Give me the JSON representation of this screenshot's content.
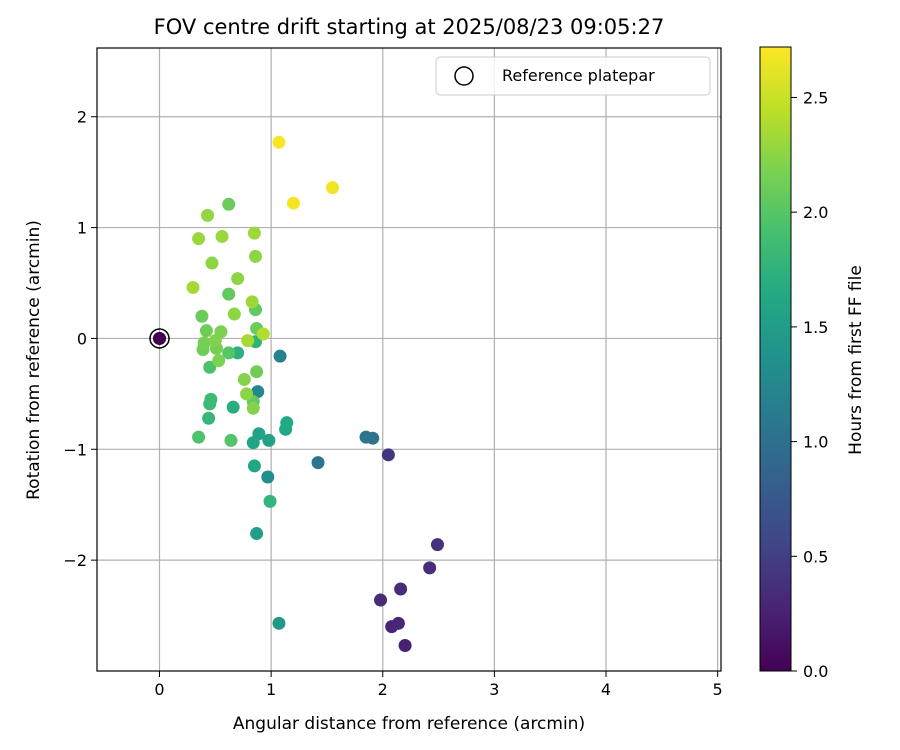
{
  "chart_data": {
    "type": "scatter",
    "title": "FOV centre drift starting at 2025/08/23 09:05:27",
    "xlabel": "Angular distance from reference (arcmin)",
    "ylabel": "Rotation from reference (arcmin)",
    "xlim": [
      -0.56,
      5.03
    ],
    "ylim": [
      -3.0,
      2.62
    ],
    "xticks": [
      0,
      1,
      2,
      3,
      4,
      5
    ],
    "yticks": [
      -2,
      -1,
      0,
      1,
      2
    ],
    "xtick_labels": [
      "0",
      "1",
      "2",
      "3",
      "4",
      "5"
    ],
    "ytick_labels": [
      "−2",
      "−1",
      "0",
      "1",
      "2"
    ],
    "grid": true,
    "legend": {
      "entries": [
        "Reference platepar"
      ],
      "location": "upper right"
    },
    "colorbar": {
      "label": "Hours from first FF file",
      "range": [
        0.0,
        2.72
      ],
      "ticks": [
        0.0,
        0.5,
        1.0,
        1.5,
        2.0,
        2.5
      ],
      "tick_labels": [
        "0.0",
        "0.5",
        "1.0",
        "1.5",
        "2.0",
        "2.5"
      ],
      "colormap": "viridis"
    },
    "reference_point": {
      "x": 0,
      "y": 0,
      "hours": 0.0
    },
    "points": [
      {
        "x": 0.0,
        "y": 0.0,
        "hours": 0.0
      },
      {
        "x": 2.2,
        "y": -2.77,
        "hours": 0.25
      },
      {
        "x": 2.08,
        "y": -2.6,
        "hours": 0.28
      },
      {
        "x": 2.14,
        "y": -2.57,
        "hours": 0.3
      },
      {
        "x": 1.98,
        "y": -2.36,
        "hours": 0.32
      },
      {
        "x": 2.16,
        "y": -2.26,
        "hours": 0.34
      },
      {
        "x": 2.42,
        "y": -2.07,
        "hours": 0.36
      },
      {
        "x": 2.49,
        "y": -1.86,
        "hours": 0.38
      },
      {
        "x": 2.05,
        "y": -1.05,
        "hours": 0.42
      },
      {
        "x": 1.91,
        "y": -0.9,
        "hours": 1.02
      },
      {
        "x": 1.85,
        "y": -0.89,
        "hours": 1.05
      },
      {
        "x": 1.42,
        "y": -1.12,
        "hours": 1.07
      },
      {
        "x": 1.08,
        "y": -0.16,
        "hours": 1.18
      },
      {
        "x": 0.88,
        "y": -0.48,
        "hours": 1.25
      },
      {
        "x": 0.97,
        "y": -1.25,
        "hours": 1.35
      },
      {
        "x": 1.07,
        "y": -2.57,
        "hours": 1.45
      },
      {
        "x": 0.87,
        "y": -1.76,
        "hours": 1.5
      },
      {
        "x": 0.89,
        "y": -0.86,
        "hours": 1.55
      },
      {
        "x": 0.84,
        "y": -0.94,
        "hours": 1.58
      },
      {
        "x": 0.98,
        "y": -0.92,
        "hours": 1.55
      },
      {
        "x": 0.85,
        "y": -1.15,
        "hours": 1.62
      },
      {
        "x": 1.13,
        "y": -0.82,
        "hours": 1.62
      },
      {
        "x": 1.14,
        "y": -0.76,
        "hours": 1.65
      },
      {
        "x": 0.66,
        "y": -0.62,
        "hours": 1.68
      },
      {
        "x": 0.7,
        "y": -0.13,
        "hours": 1.72
      },
      {
        "x": 0.86,
        "y": -0.03,
        "hours": 1.75
      },
      {
        "x": 0.99,
        "y": -1.47,
        "hours": 1.78
      },
      {
        "x": 0.44,
        "y": -0.72,
        "hours": 1.8
      },
      {
        "x": 0.45,
        "y": -0.59,
        "hours": 1.85
      },
      {
        "x": 0.46,
        "y": -0.55,
        "hours": 1.85
      },
      {
        "x": 0.45,
        "y": -0.26,
        "hours": 1.95
      },
      {
        "x": 0.35,
        "y": -0.89,
        "hours": 1.95
      },
      {
        "x": 0.64,
        "y": -0.92,
        "hours": 1.98
      },
      {
        "x": 0.62,
        "y": -0.13,
        "hours": 2.0
      },
      {
        "x": 0.62,
        "y": 0.4,
        "hours": 2.05
      },
      {
        "x": 0.86,
        "y": 0.26,
        "hours": 2.05
      },
      {
        "x": 0.84,
        "y": -0.57,
        "hours": 2.05
      },
      {
        "x": 0.87,
        "y": 0.09,
        "hours": 2.1
      },
      {
        "x": 0.87,
        "y": -0.3,
        "hours": 2.12
      },
      {
        "x": 0.62,
        "y": 1.21,
        "hours": 2.1
      },
      {
        "x": 0.38,
        "y": 0.2,
        "hours": 2.1
      },
      {
        "x": 0.39,
        "y": -0.1,
        "hours": 2.12
      },
      {
        "x": 0.4,
        "y": -0.04,
        "hours": 2.15
      },
      {
        "x": 0.42,
        "y": 0.07,
        "hours": 2.12
      },
      {
        "x": 0.51,
        "y": -0.09,
        "hours": 2.15
      },
      {
        "x": 0.55,
        "y": 0.06,
        "hours": 2.18
      },
      {
        "x": 0.53,
        "y": -0.2,
        "hours": 2.18
      },
      {
        "x": 0.5,
        "y": -0.02,
        "hours": 2.2
      },
      {
        "x": 0.84,
        "y": -0.63,
        "hours": 2.22
      },
      {
        "x": 0.76,
        "y": -0.37,
        "hours": 2.22
      },
      {
        "x": 0.78,
        "y": -0.5,
        "hours": 2.25
      },
      {
        "x": 0.86,
        "y": 0.74,
        "hours": 2.25
      },
      {
        "x": 0.67,
        "y": 0.22,
        "hours": 2.25
      },
      {
        "x": 0.7,
        "y": 0.54,
        "hours": 2.25
      },
      {
        "x": 0.47,
        "y": 0.68,
        "hours": 2.25
      },
      {
        "x": 0.43,
        "y": 1.11,
        "hours": 2.28
      },
      {
        "x": 0.35,
        "y": 0.9,
        "hours": 2.3
      },
      {
        "x": 0.56,
        "y": 0.92,
        "hours": 2.3
      },
      {
        "x": 0.85,
        "y": 0.95,
        "hours": 2.32
      },
      {
        "x": 0.83,
        "y": 0.33,
        "hours": 2.32
      },
      {
        "x": 0.79,
        "y": -0.02,
        "hours": 2.35
      },
      {
        "x": 0.3,
        "y": 0.46,
        "hours": 2.35
      },
      {
        "x": 0.93,
        "y": 0.04,
        "hours": 2.4
      },
      {
        "x": 1.07,
        "y": 1.77,
        "hours": 2.7
      },
      {
        "x": 1.2,
        "y": 1.22,
        "hours": 2.68
      },
      {
        "x": 1.55,
        "y": 1.36,
        "hours": 2.66
      }
    ]
  }
}
